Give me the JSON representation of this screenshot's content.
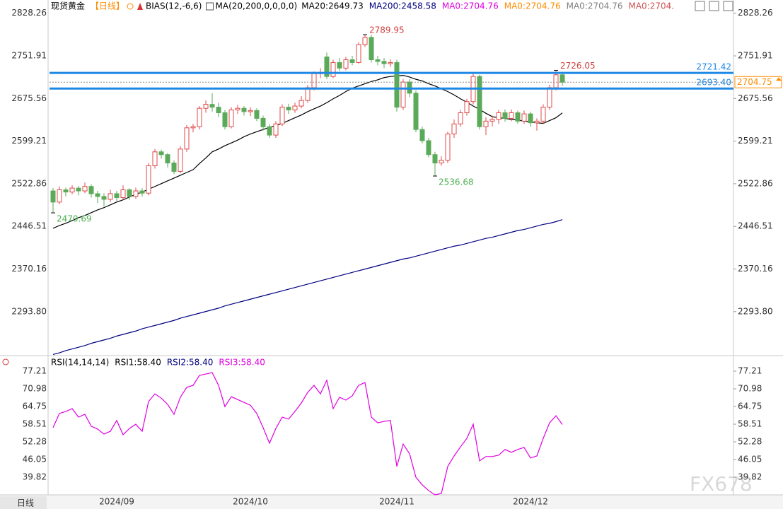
{
  "header": {
    "title": "现货黄金",
    "period": "【日线】",
    "indicator": "BIAS(12,-6,6)",
    "ma_params": "MA(20,200,0,0,0,0)",
    "extra_ma": [
      {
        "text": "MA0:2704.76",
        "color": "#e000e0"
      },
      {
        "text": "MA0:2704.76",
        "color": "#ff8c00"
      },
      {
        "text": "MA0:2704.76",
        "color": "#808080"
      },
      {
        "text": "MA0:2704.",
        "color": "#d05050"
      }
    ]
  },
  "footer_tab": "日线",
  "watermark": "FX678",
  "chart_data": [
    {
      "type": "candlestick",
      "up_color": "#e04848",
      "down_color": "#5aaa5a",
      "categories": [
        null,
        null,
        null,
        null,
        null,
        null,
        null,
        null,
        null,
        null,
        "2024/09",
        null,
        null,
        null,
        null,
        null,
        null,
        null,
        null,
        null,
        null,
        null,
        null,
        null,
        null,
        null,
        null,
        null,
        null,
        null,
        null,
        "2024/10",
        null,
        null,
        null,
        null,
        null,
        null,
        null,
        null,
        null,
        null,
        null,
        null,
        null,
        null,
        null,
        null,
        null,
        null,
        null,
        null,
        null,
        null,
        "2024/11",
        null,
        null,
        null,
        null,
        null,
        null,
        null,
        null,
        null,
        null,
        null,
        null,
        null,
        null,
        null,
        null,
        null,
        null,
        null,
        null,
        "2024/12",
        null,
        null,
        null,
        null,
        null
      ],
      "open": [
        2510,
        2490,
        2512,
        2508,
        2515,
        2510,
        2518,
        2505,
        2500,
        2495,
        2505,
        2498,
        2512,
        2500,
        2510,
        2506,
        2555,
        2580,
        2575,
        2560,
        2545,
        2585,
        2623,
        2625,
        2658,
        2665,
        2660,
        2650,
        2625,
        2655,
        2658,
        2652,
        2654,
        2640,
        2625,
        2610,
        2630,
        2660,
        2655,
        2662,
        2672,
        2695,
        2720,
        2750,
        2715,
        2740,
        2730,
        2745,
        2740,
        2772,
        2785,
        2745,
        2742,
        2738,
        2740,
        2660,
        2705,
        2685,
        2620,
        2600,
        2575,
        2560,
        2565,
        2612,
        2630,
        2650,
        2670,
        2715,
        2625,
        2635,
        2638,
        2650,
        2640,
        2650,
        2635,
        2648,
        2632,
        2635,
        2660,
        2695,
        2718
      ],
      "high": [
        2515,
        2518,
        2516,
        2520,
        2519,
        2525,
        2522,
        2510,
        2506,
        2512,
        2510,
        2520,
        2515,
        2516,
        2515,
        2560,
        2585,
        2584,
        2578,
        2565,
        2590,
        2628,
        2630,
        2662,
        2672,
        2685,
        2668,
        2655,
        2660,
        2664,
        2662,
        2660,
        2658,
        2645,
        2630,
        2635,
        2665,
        2666,
        2668,
        2680,
        2700,
        2724,
        2730,
        2758,
        2745,
        2748,
        2750,
        2752,
        2776,
        2789.95,
        2790,
        2752,
        2748,
        2746,
        2745,
        2710,
        2710,
        2690,
        2625,
        2605,
        2580,
        2572,
        2616,
        2638,
        2655,
        2675,
        2721,
        2718,
        2642,
        2645,
        2655,
        2656,
        2656,
        2654,
        2654,
        2652,
        2640,
        2665,
        2700,
        2726.05,
        2722
      ],
      "low": [
        2470.69,
        2486,
        2500,
        2504,
        2502,
        2506,
        2498,
        2488,
        2482,
        2490,
        2492,
        2494,
        2494,
        2496,
        2500,
        2502,
        2550,
        2568,
        2552,
        2540,
        2542,
        2580,
        2615,
        2620,
        2650,
        2652,
        2642,
        2620,
        2622,
        2648,
        2645,
        2644,
        2635,
        2618,
        2605,
        2605,
        2626,
        2648,
        2650,
        2658,
        2668,
        2690,
        2712,
        2710,
        2712,
        2725,
        2726,
        2735,
        2738,
        2768,
        2740,
        2735,
        2730,
        2732,
        2652,
        2655,
        2678,
        2615,
        2595,
        2570,
        2536.68,
        2555,
        2560,
        2605,
        2625,
        2645,
        2665,
        2620,
        2610,
        2626,
        2630,
        2634,
        2635,
        2630,
        2630,
        2625,
        2618,
        2630,
        2655,
        2690,
        2698
      ],
      "close": [
        2490,
        2512,
        2508,
        2515,
        2510,
        2518,
        2505,
        2500,
        2495,
        2505,
        2498,
        2512,
        2500,
        2510,
        2506,
        2555,
        2580,
        2575,
        2560,
        2545,
        2585,
        2623,
        2625,
        2658,
        2665,
        2660,
        2650,
        2625,
        2655,
        2658,
        2652,
        2654,
        2640,
        2625,
        2610,
        2630,
        2660,
        2655,
        2662,
        2672,
        2695,
        2720,
        2722,
        2715,
        2740,
        2730,
        2745,
        2740,
        2772,
        2785,
        2745,
        2742,
        2738,
        2740,
        2660,
        2705,
        2685,
        2620,
        2600,
        2575,
        2560,
        2565,
        2612,
        2630,
        2650,
        2670,
        2715,
        2625,
        2635,
        2638,
        2650,
        2640,
        2650,
        2635,
        2648,
        2632,
        2635,
        2660,
        2695,
        2718,
        2704.75
      ],
      "series": [
        {
          "name": "MA20:2649.73",
          "color": "#000000",
          "values": [
            2443,
            2448,
            2452,
            2457,
            2462,
            2466,
            2471,
            2476,
            2480,
            2485,
            2490,
            2494,
            2499,
            2504,
            2508,
            2513,
            2518,
            2523,
            2528,
            2533,
            2538,
            2543,
            2548,
            2559,
            2569,
            2580,
            2585,
            2591,
            2596,
            2601,
            2607,
            2612,
            2616,
            2620,
            2624,
            2627,
            2631,
            2636,
            2641,
            2646,
            2652,
            2657,
            2662,
            2668,
            2675,
            2681,
            2688,
            2694,
            2698,
            2702,
            2706,
            2709,
            2713,
            2715,
            2716,
            2717,
            2714,
            2710,
            2707,
            2702,
            2698,
            2693,
            2688,
            2682,
            2675,
            2669,
            2662,
            2656,
            2649,
            2643,
            2641,
            2640,
            2638,
            2637,
            2635,
            2634,
            2632,
            2631,
            2636,
            2641,
            2649.73
          ]
        },
        {
          "name": "MA200:2458.58",
          "color": "#000080",
          "values": [
            2217,
            2220,
            2224,
            2227,
            2230,
            2233,
            2237,
            2240,
            2243,
            2246,
            2250,
            2253,
            2256,
            2259,
            2263,
            2266,
            2269,
            2272,
            2275,
            2278,
            2282,
            2285,
            2288,
            2291,
            2294,
            2297,
            2300,
            2304,
            2307,
            2310,
            2313,
            2316,
            2319,
            2322,
            2325,
            2328,
            2331,
            2334,
            2337,
            2340,
            2343,
            2346,
            2349,
            2352,
            2355,
            2358,
            2361,
            2364,
            2367,
            2370,
            2373,
            2376,
            2379,
            2382,
            2385,
            2388,
            2390,
            2393,
            2396,
            2399,
            2402,
            2405,
            2408,
            2411,
            2413,
            2416,
            2419,
            2422,
            2425,
            2427,
            2430,
            2433,
            2436,
            2439,
            2441,
            2444,
            2447,
            2450,
            2452,
            2455,
            2458.58
          ]
        }
      ],
      "price_lines": [
        2721.42,
        {
          "value": 2693.4,
          "label": "2693.40"
        }
      ],
      "price_line_color": "#1e88e5",
      "ylim": [
        2215,
        2852
      ],
      "yticks": [
        2828.26,
        2751.91,
        2675.56,
        2599.21,
        2522.86,
        2446.51,
        2370.16,
        {
          "value": 2293.8,
          "label": "2293.80"
        }
      ]
    },
    {
      "type": "line",
      "title": "RSI(14,14,14)",
      "extra_labels": [
        {
          "text": "RSI1:58.40",
          "color": "#000000"
        },
        {
          "text": "RSI2:58.40",
          "color": "#000080"
        }
      ],
      "series": [
        {
          "name": "RSI3:58.40",
          "color": "#e000e0",
          "values": [
            57.3,
            62.3,
            63.0,
            64.0,
            61.0,
            62.0,
            57.8,
            56.8,
            55.0,
            56.0,
            59.8,
            54.8,
            57.0,
            58.5,
            56.0,
            66.5,
            69.2,
            67.7,
            65.5,
            62.0,
            68.0,
            71.5,
            72.2,
            75.7,
            76.2,
            76.7,
            72.2,
            64.7,
            68.2,
            67.2,
            66.2,
            65.2,
            62.3,
            57.3,
            51.8,
            57.0,
            61.0,
            60.3,
            63.0,
            66.0,
            69.7,
            72.2,
            69.2,
            74.0,
            64.0,
            68.0,
            67.0,
            68.5,
            72.2,
            73.2,
            61.0,
            59.0,
            59.5,
            59.8,
            43.6,
            51.5,
            48.1,
            39.8,
            37.1,
            35.1,
            33.6,
            34.1,
            43.6,
            47.3,
            50.5,
            53.5,
            58.5,
            45.6,
            47.1,
            47.1,
            47.6,
            49.6,
            48.6,
            49.6,
            50.3,
            46.6,
            47.3,
            53.5,
            59.0,
            61.5,
            58.4
          ]
        }
      ],
      "ylim": [
        33.59,
        82.2
      ],
      "yticks": [
        77.21,
        70.98,
        64.75,
        58.51,
        52.28,
        46.05,
        39.82
      ]
    }
  ]
}
